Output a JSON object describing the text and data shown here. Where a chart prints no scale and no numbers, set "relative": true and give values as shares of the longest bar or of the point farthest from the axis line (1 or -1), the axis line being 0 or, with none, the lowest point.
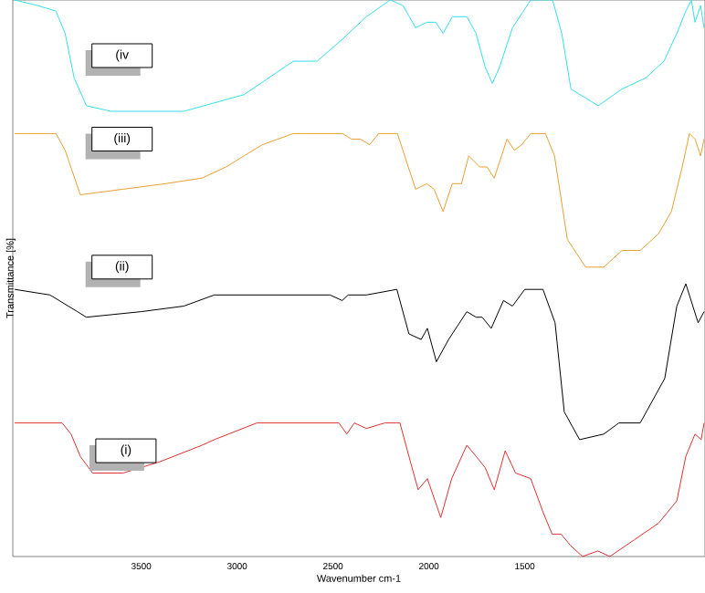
{
  "chart_data": {
    "type": "line",
    "relative": true,
    "xlabel": "Wavenumber cm-1",
    "ylabel": "Transmittance [%]",
    "xlim": [
      4170,
      560
    ],
    "xticks": [
      3500,
      3000,
      2500,
      2000,
      1500
    ],
    "grid": false,
    "marker": "none",
    "line_style": "solid",
    "annotations": [
      "(iv",
      "(iii)",
      "(ii)",
      "(i)"
    ],
    "series": [
      {
        "color": "#33e0e8",
        "x": [
          4160,
          4040,
          3945,
          3897,
          3850,
          3786,
          3659,
          3278,
          2964,
          2707,
          2583,
          2450,
          2326,
          2202,
          2135,
          2069,
          2011,
          1964,
          1926,
          1878,
          1802,
          1754,
          1707,
          1669,
          1631,
          1564,
          1469,
          1355,
          1307,
          1259,
          1117,
          993,
          869,
          774,
          707,
          660,
          631,
          612,
          583,
          565
        ],
        "values": [
          1.0,
          0.99,
          0.98,
          0.94,
          0.86,
          0.81,
          0.8,
          0.8,
          0.83,
          0.89,
          0.89,
          0.93,
          0.97,
          1.0,
          0.99,
          0.95,
          0.96,
          0.96,
          0.94,
          0.97,
          0.97,
          0.94,
          0.88,
          0.85,
          0.88,
          0.95,
          1.0,
          1.0,
          0.94,
          0.84,
          0.81,
          0.84,
          0.86,
          0.89,
          0.94,
          0.98,
          1.0,
          0.96,
          0.99,
          0.95
        ]
      },
      {
        "color": "#e8a030",
        "x": [
          4160,
          3945,
          3897,
          3818,
          3595,
          3373,
          3183,
          3058,
          3011,
          2964,
          2868,
          2707,
          2450,
          2404,
          2357,
          2309,
          2262,
          2164,
          2117,
          2069,
          2011,
          1973,
          1926,
          1878,
          1830,
          1792,
          1735,
          1697,
          1659,
          1621,
          1593,
          1554,
          1516,
          1469,
          1392,
          1345,
          1278,
          1183,
          1088,
          993,
          898,
          802,
          735,
          679,
          641,
          612,
          583,
          565
        ],
        "values": [
          0.76,
          0.76,
          0.73,
          0.65,
          0.66,
          0.67,
          0.68,
          0.7,
          0.71,
          0.72,
          0.74,
          0.76,
          0.76,
          0.75,
          0.75,
          0.74,
          0.76,
          0.76,
          0.71,
          0.66,
          0.67,
          0.66,
          0.62,
          0.67,
          0.67,
          0.72,
          0.7,
          0.7,
          0.68,
          0.72,
          0.75,
          0.73,
          0.74,
          0.76,
          0.76,
          0.72,
          0.57,
          0.52,
          0.52,
          0.55,
          0.55,
          0.58,
          0.62,
          0.7,
          0.76,
          0.75,
          0.72,
          0.75
        ]
      },
      {
        "color": "#000000",
        "x": [
          4160,
          3976,
          3833,
          3786,
          3500,
          3278,
          3119,
          2516,
          2452,
          2421,
          2326,
          2167,
          2104,
          2040,
          2008,
          1961,
          1897,
          1802,
          1754,
          1722,
          1675,
          1611,
          1564,
          1500,
          1405,
          1342,
          1294,
          1214,
          1088,
          1009,
          898,
          818,
          770,
          707,
          660,
          596,
          565
        ],
        "values": [
          0.48,
          0.47,
          0.44,
          0.43,
          0.44,
          0.45,
          0.47,
          0.47,
          0.46,
          0.47,
          0.47,
          0.48,
          0.4,
          0.39,
          0.41,
          0.35,
          0.39,
          0.44,
          0.43,
          0.43,
          0.41,
          0.46,
          0.45,
          0.48,
          0.48,
          0.42,
          0.26,
          0.21,
          0.22,
          0.24,
          0.24,
          0.29,
          0.32,
          0.45,
          0.49,
          0.42,
          0.44
        ]
      },
      {
        "color": "#e03030",
        "x": [
          4160,
          3913,
          3866,
          3818,
          3754,
          3595,
          3405,
          3183,
          3119,
          2897,
          2469,
          2428,
          2389,
          2326,
          2230,
          2151,
          2104,
          2056,
          2008,
          1938,
          1881,
          1802,
          1754,
          1707,
          1659,
          1602,
          1548,
          1469,
          1405,
          1357,
          1310,
          1262,
          1199,
          1119,
          1056,
          929,
          802,
          707,
          660,
          612,
          580,
          565
        ],
        "values": [
          0.24,
          0.24,
          0.22,
          0.18,
          0.15,
          0.15,
          0.17,
          0.2,
          0.21,
          0.24,
          0.24,
          0.22,
          0.24,
          0.23,
          0.24,
          0.24,
          0.18,
          0.12,
          0.14,
          0.07,
          0.14,
          0.2,
          0.18,
          0.16,
          0.12,
          0.19,
          0.15,
          0.14,
          0.08,
          0.04,
          0.04,
          0.02,
          0.0,
          0.01,
          0.0,
          0.03,
          0.06,
          0.1,
          0.18,
          0.22,
          0.21,
          0.24
        ]
      }
    ]
  }
}
